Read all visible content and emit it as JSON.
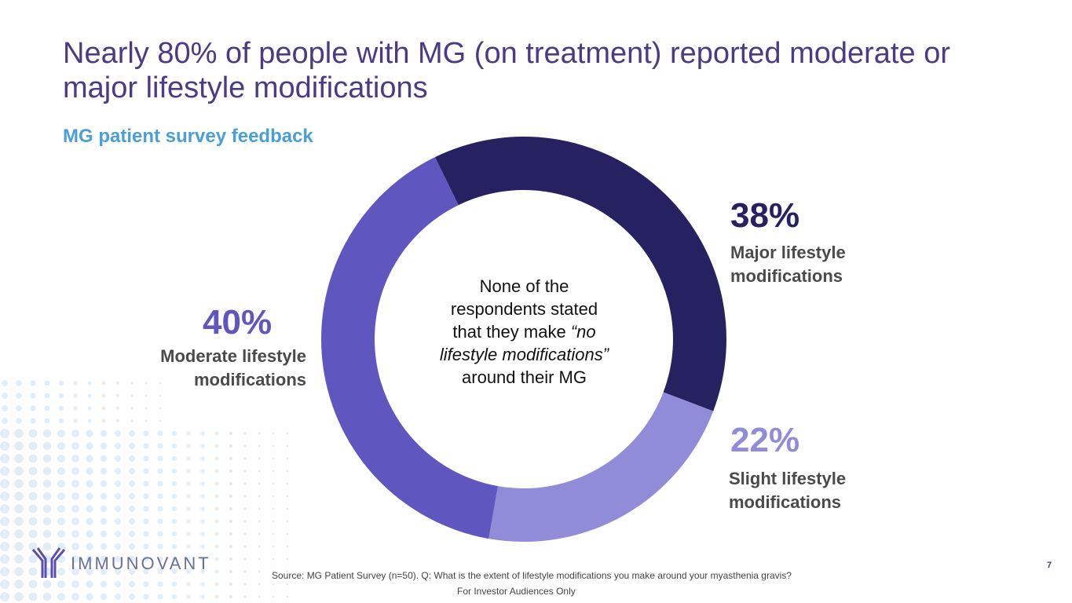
{
  "slide": {
    "title": "Nearly 80% of people with MG (on treatment) reported moderate or major lifestyle modifications",
    "subtitle": "MG patient survey feedback",
    "center_text": {
      "line1": "None of the",
      "line2": "respondents stated",
      "line3a": "that they make ",
      "line3b": "“no",
      "line4": "lifestyle modifications”",
      "line5": "around their MG"
    },
    "source": "Source: MG Patient Survey (n=50). Q: What is the extent of lifestyle modifications you make around your myasthenia gravis?",
    "footer": "For Investor Audiences Only",
    "page_number": "7",
    "logo": "IMMUNOVANT"
  },
  "chart_data": {
    "type": "pie",
    "variant": "donut",
    "title": "MG patient survey feedback",
    "categories": [
      "Major lifestyle modifications",
      "Slight lifestyle modifications",
      "Moderate lifestyle modifications"
    ],
    "values": [
      38,
      22,
      40
    ],
    "labels": [
      "38%",
      "22%",
      "40%"
    ],
    "colors": [
      "#262262",
      "#918cd8",
      "#5f56c0"
    ]
  }
}
